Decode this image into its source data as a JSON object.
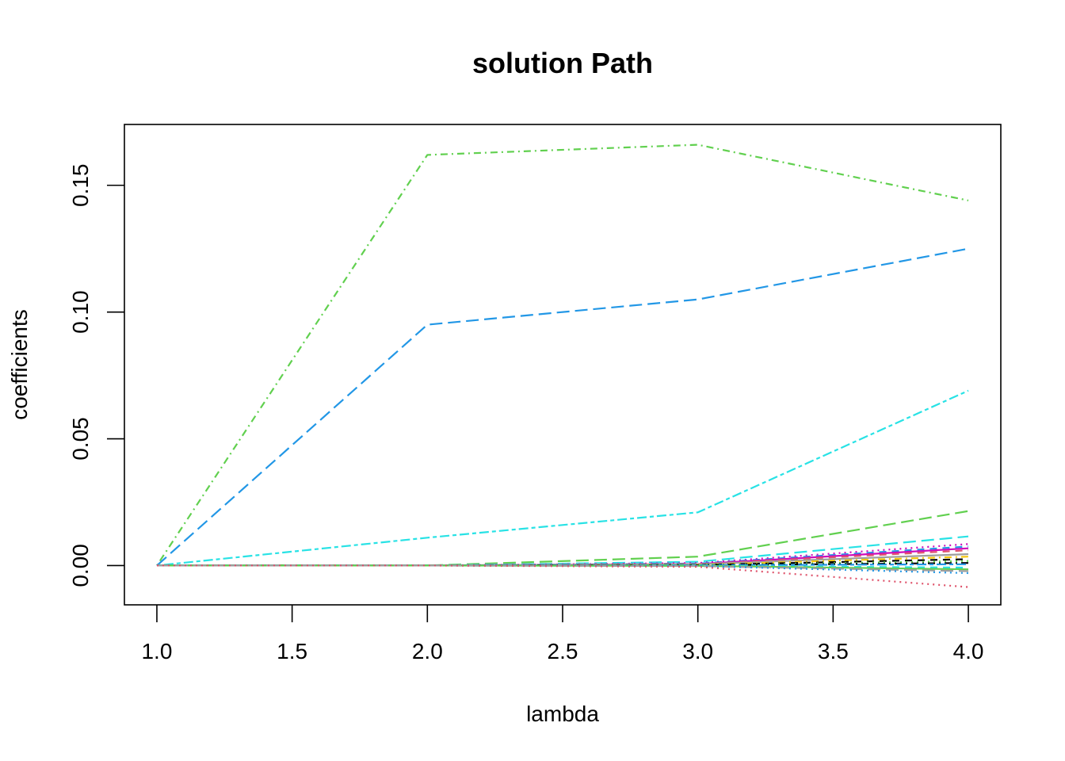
{
  "chart_data": {
    "type": "line",
    "title": "solution Path",
    "xlabel": "lambda",
    "ylabel": "coefficients",
    "xlim": [
      0.88,
      4.12
    ],
    "ylim": [
      -0.0155,
      0.174
    ],
    "xticks": [
      1.0,
      1.5,
      2.0,
      2.5,
      3.0,
      3.5,
      4.0
    ],
    "xtick_labels": [
      "1.0",
      "1.5",
      "2.0",
      "2.5",
      "3.0",
      "3.5",
      "4.0"
    ],
    "yticks": [
      0.0,
      0.05,
      0.1,
      0.15
    ],
    "ytick_labels": [
      "0.00",
      "0.05",
      "0.10",
      "0.15"
    ],
    "grid": false,
    "x": [
      1,
      2,
      3,
      4
    ],
    "series": [
      {
        "values": [
          0,
          0.162,
          0.166,
          0.144
        ],
        "color": "#61D04F",
        "dash": "dotdash"
      },
      {
        "values": [
          0,
          0.095,
          0.105,
          0.125
        ],
        "color": "#2297E6",
        "dash": "longdash"
      },
      {
        "values": [
          0,
          0.011,
          0.021,
          0.069
        ],
        "color": "#28E2E5",
        "dash": "twodash"
      },
      {
        "values": [
          0,
          0,
          0.0035,
          0.0215
        ],
        "color": "#61D04F",
        "dash": "longdash"
      },
      {
        "values": [
          0,
          0,
          0.0015,
          0.0115
        ],
        "color": "#28E2E5",
        "dash": "longdash"
      },
      {
        "values": [
          0,
          0,
          0.001,
          0.0085
        ],
        "color": "#CD0BBC",
        "dash": "dotted"
      },
      {
        "values": [
          0,
          0,
          0.0008,
          0.0075
        ],
        "color": "#2297E6",
        "dash": "dashed"
      },
      {
        "values": [
          0,
          0,
          0.0006,
          0.0068
        ],
        "color": "#CD0BBC",
        "dash": "solid"
      },
      {
        "values": [
          0,
          0,
          0.0005,
          0.006
        ],
        "color": "#DF536B",
        "dash": "dashed"
      },
      {
        "values": [
          0,
          0,
          0.0005,
          0.0045
        ],
        "color": "#9E9E9E",
        "dash": "solid"
      },
      {
        "values": [
          0,
          0,
          0.0003,
          0.0035
        ],
        "color": "#F5C710",
        "dash": "dotdash"
      },
      {
        "values": [
          0,
          0,
          0.0002,
          0.0025
        ],
        "color": "#000000",
        "dash": "dashed"
      },
      {
        "values": [
          0,
          0,
          0.0002,
          0.0018
        ],
        "color": "#61D04F",
        "dash": "dotted"
      },
      {
        "values": [
          0,
          0,
          0.0001,
          0.001
        ],
        "color": "#000000",
        "dash": "dotdash"
      },
      {
        "values": [
          0,
          0,
          0.0001,
          0.0005
        ],
        "color": "#2297E6",
        "dash": "twodash"
      },
      {
        "values": [
          0,
          0,
          -0.0001,
          -0.0008
        ],
        "color": "#28E2E5",
        "dash": "dashed"
      },
      {
        "values": [
          0,
          0,
          -0.0001,
          -0.0015
        ],
        "color": "#61D04F",
        "dash": "solid"
      },
      {
        "values": [
          0,
          0,
          -0.0002,
          -0.0022
        ],
        "color": "#9E9E9E",
        "dash": "longdash"
      },
      {
        "values": [
          0,
          0,
          -0.0002,
          -0.003
        ],
        "color": "#2297E6",
        "dash": "dotted"
      },
      {
        "values": [
          0,
          0,
          -0.0005,
          -0.0085
        ],
        "color": "#DF536B",
        "dash": "dotted"
      }
    ]
  }
}
